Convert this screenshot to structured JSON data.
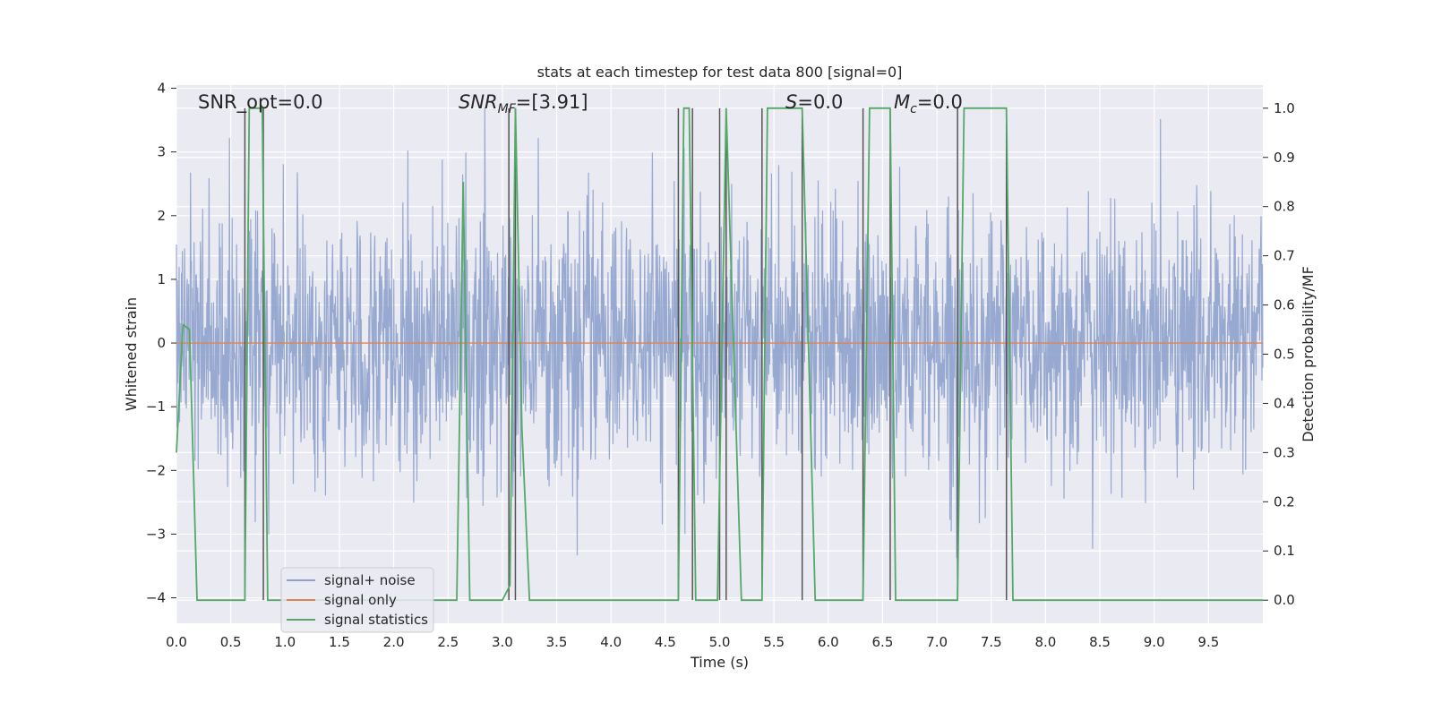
{
  "chart_data": {
    "type": "line",
    "title": "stats at each timestep for test data 800 [signal=0]",
    "xlabel": "Time (s)",
    "ylabel": "Whitened strain",
    "y2label": "Detection probability/MF",
    "xlim": [
      0.0,
      10.0
    ],
    "ylim": [
      -4.4,
      4.05
    ],
    "y2lim": [
      -0.047,
      1.047
    ],
    "x_ticks": [
      "0.0",
      "0.5",
      "1.0",
      "1.5",
      "2.0",
      "2.5",
      "3.0",
      "3.5",
      "4.0",
      "4.5",
      "5.0",
      "5.5",
      "6.0",
      "6.5",
      "7.0",
      "7.5",
      "8.0",
      "8.5",
      "9.0",
      "9.5"
    ],
    "y_ticks": [
      "4",
      "3",
      "2",
      "1",
      "0",
      "−1",
      "−2",
      "−3",
      "−4"
    ],
    "y2_ticks": [
      "1.0",
      "0.9",
      "0.8",
      "0.7",
      "0.6",
      "0.5",
      "0.4",
      "0.3",
      "0.2",
      "0.1",
      "0.0"
    ],
    "grid": true,
    "legend_position": "lower-left",
    "annotations": [
      {
        "label": "SNR_opt=0.0"
      },
      {
        "label": "SNR",
        "sub": "MF",
        "value": "=[3.91]"
      },
      {
        "label": "S",
        "value": "=0.0"
      },
      {
        "label": "M",
        "sub": "c",
        "value": "=0.0"
      }
    ],
    "series": [
      {
        "name": "signal+ noise",
        "axis": "left",
        "color": "#8ea2cc",
        "description": "whitened noise, approx. std 1.0, values between -4 and 4"
      },
      {
        "name": "signal only",
        "axis": "left",
        "color": "#dd8452",
        "x": [
          0.0,
          10.0
        ],
        "y": [
          0.0,
          0.0
        ]
      },
      {
        "name": "signal statistics",
        "axis": "right",
        "color": "#55a868",
        "x": [
          0.0,
          0.06,
          0.12,
          0.19,
          0.23,
          0.63,
          0.67,
          0.79,
          0.84,
          1.0,
          1.5,
          2.0,
          2.58,
          2.64,
          2.7,
          3.0,
          3.07,
          3.12,
          3.18,
          3.25,
          4.0,
          4.5,
          4.62,
          4.67,
          4.72,
          4.78,
          4.98,
          5.06,
          5.2,
          5.39,
          5.44,
          5.76,
          5.88,
          6.0,
          6.32,
          6.38,
          6.57,
          6.62,
          6.66,
          7.19,
          7.25,
          7.64,
          7.7,
          8.0,
          9.0,
          10.0
        ],
        "y": [
          0.3,
          0.56,
          0.55,
          0.0,
          0.0,
          0.0,
          1.0,
          1.0,
          0.0,
          0.0,
          0.0,
          0.0,
          0.0,
          0.85,
          0.0,
          0.0,
          0.03,
          1.0,
          0.35,
          0.0,
          0.0,
          0.0,
          0.0,
          1.0,
          1.0,
          0.0,
          0.0,
          1.0,
          0.0,
          0.0,
          1.0,
          1.0,
          0.0,
          0.0,
          0.0,
          1.0,
          1.0,
          0.0,
          0.0,
          0.0,
          1.0,
          1.0,
          0.0,
          0.0,
          0.0,
          0.0
        ]
      },
      {
        "name": "",
        "axis": "right",
        "color": "#555555",
        "description": "vertical marker lines",
        "x": [
          0.63,
          0.8,
          3.06,
          3.12,
          4.62,
          4.75,
          5.0,
          5.06,
          5.39,
          5.76,
          6.32,
          6.57,
          7.19,
          7.64
        ]
      }
    ]
  }
}
